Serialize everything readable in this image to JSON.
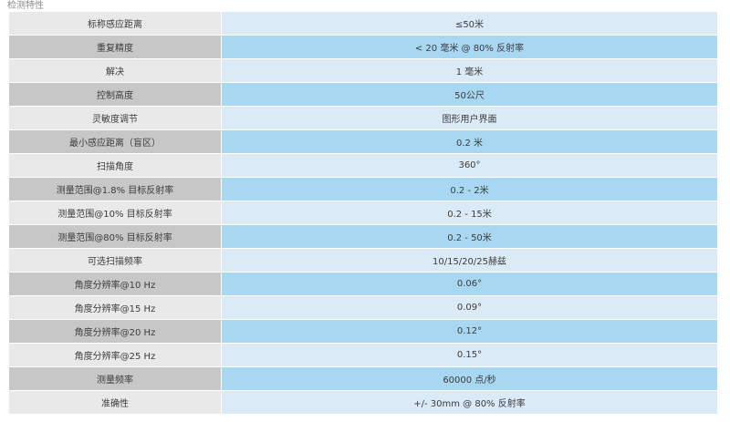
{
  "section_title": "检测特性",
  "specs": [
    {
      "label": "标称感应距离",
      "value": "≤50米"
    },
    {
      "label": "重复精度",
      "value": "< 20 毫米 @ 80% 反射率"
    },
    {
      "label": "解决",
      "value": "1 毫米"
    },
    {
      "label": "控制高度",
      "value": "50公尺"
    },
    {
      "label": "灵敏度调节",
      "value": "图形用户界面"
    },
    {
      "label": "最小感应距离（盲区）",
      "value": "0.2 米"
    },
    {
      "label": "扫描角度",
      "value": "360°"
    },
    {
      "label": "测量范围@1.8% 目标反射率",
      "value": "0.2 - 2米"
    },
    {
      "label": "测量范围@10% 目标反射率",
      "value": "0.2 - 15米"
    },
    {
      "label": "测量范围@80% 目标反射率",
      "value": "0.2 - 50米"
    },
    {
      "label": "可选扫描频率",
      "value": "10/15/20/25赫兹"
    },
    {
      "label": "角度分辨率@10 Hz",
      "value": "0.06°"
    },
    {
      "label": "角度分辨率@15 Hz",
      "value": "0.09°"
    },
    {
      "label": "角度分辨率@20 Hz",
      "value": "0.12°"
    },
    {
      "label": "角度分辨率@25 Hz",
      "value": "0.15°"
    },
    {
      "label": "测量频率",
      "value": "60000 点/秒"
    },
    {
      "label": "准确性",
      "value": "+/- 30mm @ 80% 反射率"
    }
  ]
}
